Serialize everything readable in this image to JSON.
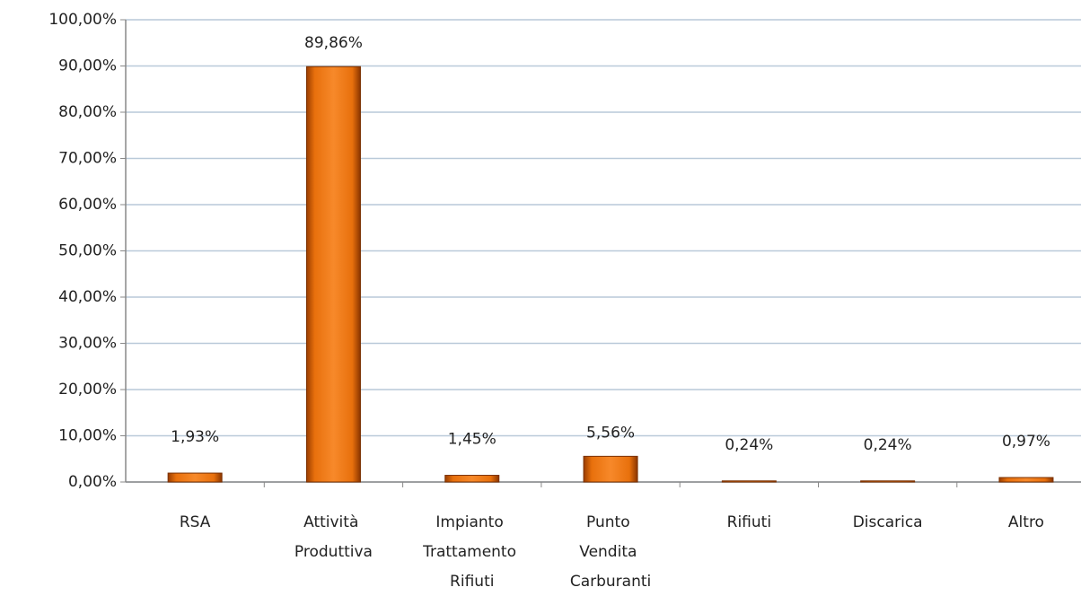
{
  "chart_data": {
    "type": "bar",
    "categories": [
      "RSA",
      "Attività Produttiva",
      "Impianto Trattamento Rifiuti",
      "Punto Vendita Carburanti",
      "Rifiuti",
      "Discarica",
      "Altro"
    ],
    "values": [
      1.93,
      89.86,
      1.45,
      5.56,
      0.24,
      0.24,
      0.97
    ],
    "value_labels": [
      "1,93%",
      "89,86%",
      "1,45%",
      "5,56%",
      "0,24%",
      "0,24%",
      "0,97%"
    ],
    "color": "#ee7711",
    "ylim": [
      0,
      100
    ],
    "yticks": [
      {
        "value": 0,
        "label": "0,00%"
      },
      {
        "value": 10,
        "label": "10,00%"
      },
      {
        "value": 20,
        "label": "20,00%"
      },
      {
        "value": 30,
        "label": "30,00%"
      },
      {
        "value": 40,
        "label": "40,00%"
      },
      {
        "value": 50,
        "label": "50,00%"
      },
      {
        "value": 60,
        "label": "60,00%"
      },
      {
        "value": 70,
        "label": "70,00%"
      },
      {
        "value": 80,
        "label": "80,00%"
      },
      {
        "value": 90,
        "label": "90,00%"
      },
      {
        "value": 100,
        "label": "100,00%"
      }
    ],
    "grid": true
  }
}
